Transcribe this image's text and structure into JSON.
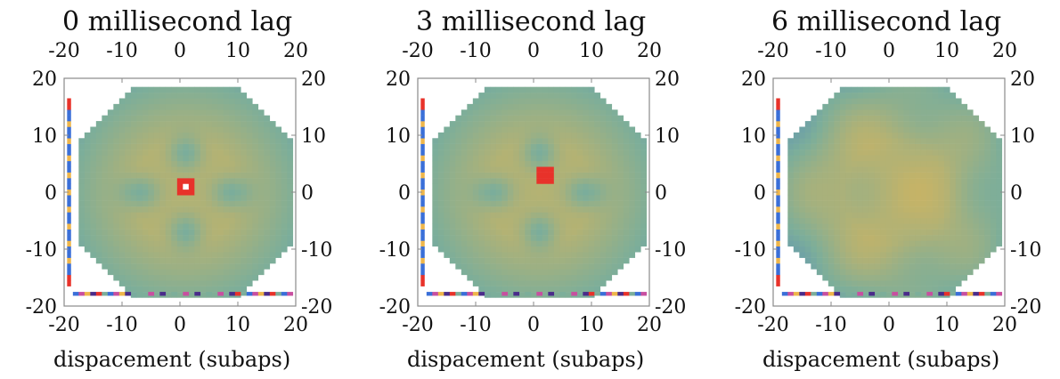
{
  "figure": {
    "colors": {
      "low": "#3a6fd8",
      "mid": "#7cae9a",
      "high": "#efb64a",
      "peak": "#e8322a",
      "artifact_pink": "#c84fa0",
      "artifact_purple": "#4a2c8a"
    }
  },
  "chart_data": [
    {
      "type": "heatmap",
      "title": "0 millisecond lag",
      "xlabel": "dispacement (subaps)",
      "ylabel": "",
      "xlim": [
        -20,
        20
      ],
      "ylim": [
        -20,
        20
      ],
      "xticks": [
        "-20",
        "-10",
        "0",
        "10",
        "20"
      ],
      "yticks": [
        "20",
        "10",
        "0",
        "-10",
        "-20"
      ],
      "tick_values": [
        -20,
        -10,
        0,
        10,
        20
      ],
      "grid": false,
      "legend": "none",
      "pupil": "octagon",
      "peak": {
        "x": 1,
        "y": 1,
        "strength": "strong"
      },
      "pattern": "cross"
    },
    {
      "type": "heatmap",
      "title": "3 millisecond lag",
      "xlabel": "dispacement (subaps)",
      "ylabel": "",
      "xlim": [
        -20,
        20
      ],
      "ylim": [
        -20,
        20
      ],
      "xticks": [
        "-20",
        "-10",
        "0",
        "10",
        "20"
      ],
      "yticks": [
        "20",
        "10",
        "0",
        "-10",
        "-20"
      ],
      "tick_values": [
        -20,
        -10,
        0,
        10,
        20
      ],
      "grid": false,
      "legend": "none",
      "pupil": "octagon",
      "peak": {
        "x": 2,
        "y": 3,
        "strength": "moderate"
      },
      "pattern": "cross"
    },
    {
      "type": "heatmap",
      "title": "6 millisecond lag",
      "xlabel": "dispacement (subaps)",
      "ylabel": "",
      "xlim": [
        -20,
        20
      ],
      "ylim": [
        -20,
        20
      ],
      "xticks": [
        "-20",
        "-10",
        "0",
        "10",
        "20"
      ],
      "yticks": [
        "20",
        "10",
        "0",
        "-10",
        "-20"
      ],
      "tick_values": [
        -20,
        -10,
        0,
        10,
        20
      ],
      "grid": false,
      "legend": "none",
      "pupil": "octagon",
      "peak": null,
      "pattern": "diffuse"
    }
  ]
}
